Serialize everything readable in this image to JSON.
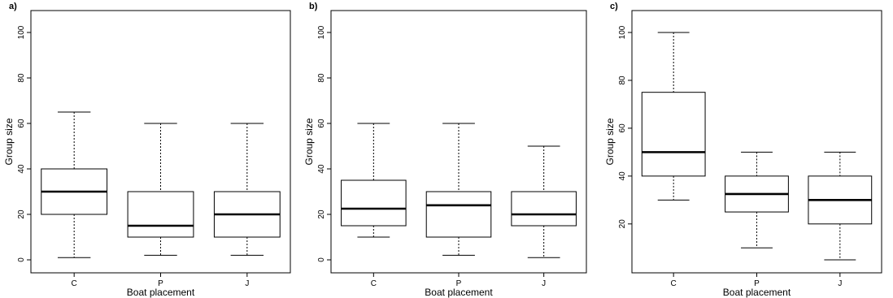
{
  "chart_data": [
    {
      "type": "box",
      "panel_label": "a)",
      "xlabel": "Boat placement",
      "ylabel": "Group size",
      "categories": [
        "C",
        "P",
        "J"
      ],
      "ylim": [
        0,
        100
      ],
      "yticks": [
        0,
        20,
        40,
        60,
        80,
        100
      ],
      "boxes": [
        {
          "category": "C",
          "min": 1,
          "q1": 20,
          "median": 30,
          "q3": 40,
          "max": 65
        },
        {
          "category": "P",
          "min": 2,
          "q1": 10,
          "median": 15,
          "q3": 30,
          "max": 60
        },
        {
          "category": "J",
          "min": 2,
          "q1": 10,
          "median": 20,
          "q3": 30,
          "max": 60
        }
      ]
    },
    {
      "type": "box",
      "panel_label": "b)",
      "xlabel": "Boat placement",
      "ylabel": "Group size",
      "categories": [
        "C",
        "P",
        "J"
      ],
      "ylim": [
        0,
        100
      ],
      "yticks": [
        0,
        20,
        40,
        60,
        80,
        100
      ],
      "boxes": [
        {
          "category": "C",
          "min": 10,
          "q1": 15,
          "median": 22.5,
          "q3": 35,
          "max": 60
        },
        {
          "category": "P",
          "min": 2,
          "q1": 10,
          "median": 24,
          "q3": 30,
          "max": 60
        },
        {
          "category": "J",
          "min": 1,
          "q1": 15,
          "median": 20,
          "q3": 30,
          "max": 50
        }
      ]
    },
    {
      "type": "box",
      "panel_label": "c)",
      "xlabel": "Boat placement",
      "ylabel": "Group size",
      "categories": [
        "C",
        "P",
        "J"
      ],
      "ylim": [
        5,
        100
      ],
      "yticks": [
        20,
        40,
        60,
        80,
        100
      ],
      "boxes": [
        {
          "category": "C",
          "min": 30,
          "q1": 40,
          "median": 50,
          "q3": 75,
          "max": 100
        },
        {
          "category": "P",
          "min": 10,
          "q1": 25,
          "median": 32.5,
          "q3": 40,
          "max": 50
        },
        {
          "category": "J",
          "min": 5,
          "q1": 20,
          "median": 30,
          "q3": 40,
          "max": 50
        }
      ]
    }
  ]
}
